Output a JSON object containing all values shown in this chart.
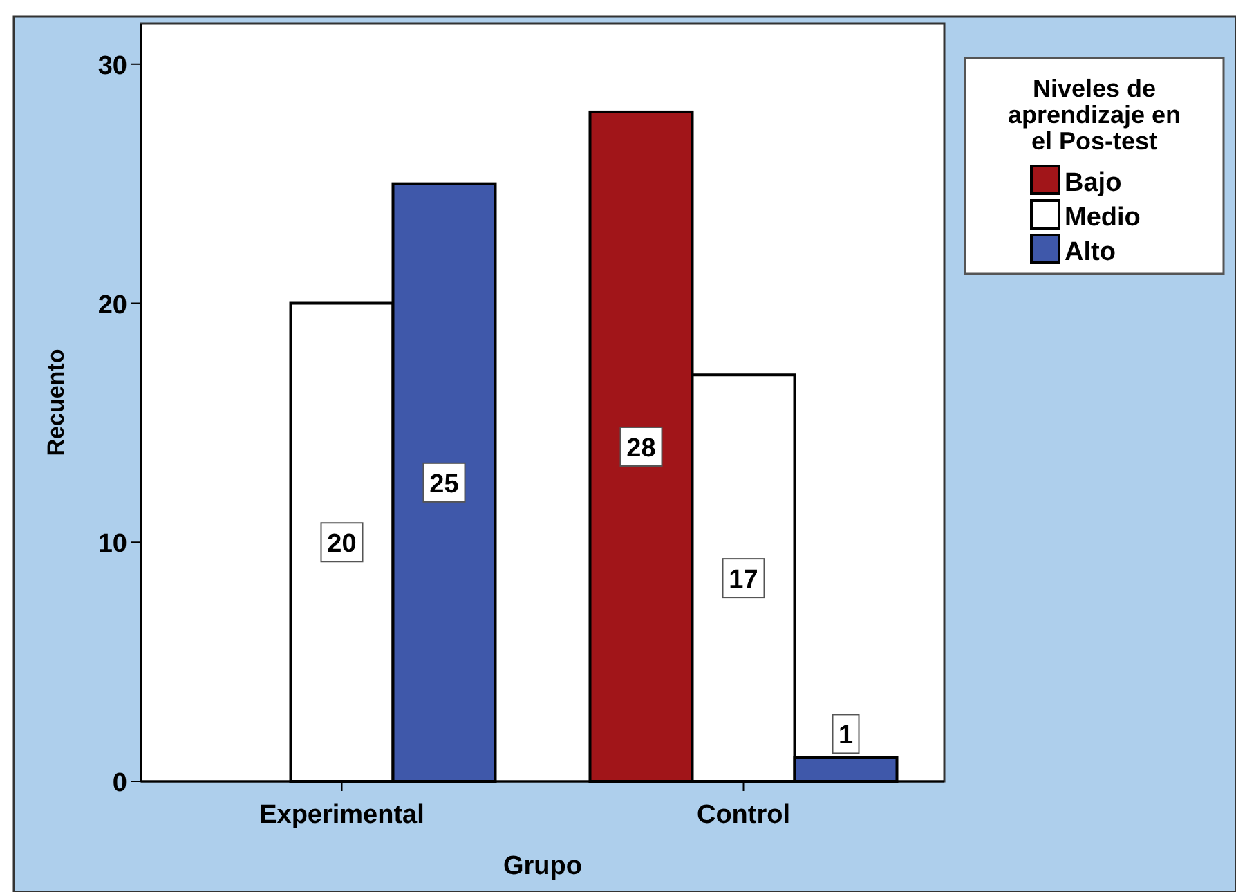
{
  "chart_data": {
    "type": "bar",
    "xlabel": "Grupo",
    "ylabel": "Recuento",
    "legend_title": "Niveles de aprendizaje en el Pos-test",
    "categories": [
      "Experimental",
      "Control"
    ],
    "series": [
      {
        "name": "Bajo",
        "color": "#a11519",
        "values": [
          null,
          28
        ]
      },
      {
        "name": "Medio",
        "color": "#ffffff",
        "values": [
          20,
          17
        ]
      },
      {
        "name": "Alto",
        "color": "#3f58aa",
        "values": [
          25,
          1
        ]
      }
    ],
    "ylim": [
      0,
      31.7
    ],
    "yticks": [
      0,
      10,
      20,
      30
    ],
    "data_labels": true,
    "legend": "top right",
    "grid": false
  }
}
